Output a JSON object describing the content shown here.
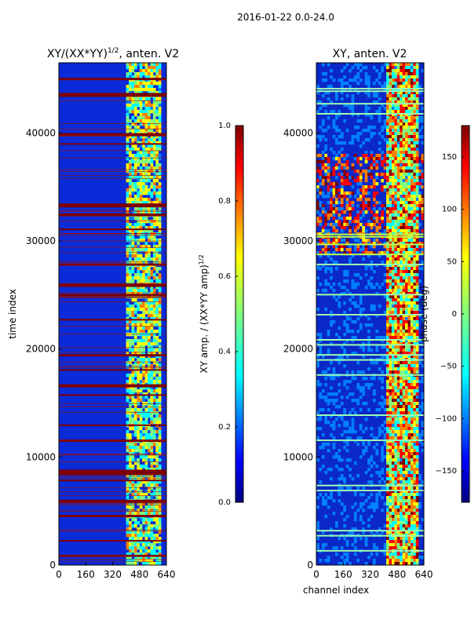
{
  "figure": {
    "suptitle": "2016-01-22 0.0-24.0"
  },
  "colors": {
    "jet": [
      "#00007f",
      "#0000ff",
      "#007fff",
      "#00ffff",
      "#7fff7f",
      "#ffff00",
      "#ff7f00",
      "#ff0000",
      "#7f0000"
    ],
    "axis": "#000000"
  },
  "chart_data": [
    {
      "id": "amp",
      "type": "heatmap",
      "title": "XY/(XX*YY)",
      "title_sup": "1/2",
      "title_suffix": ", anten. V2",
      "xlabel": "",
      "ylabel": "time index",
      "xlim": [
        0,
        640
      ],
      "ylim": [
        0,
        46500
      ],
      "xticks": [
        0,
        160,
        320,
        480,
        640
      ],
      "yticks": [
        0,
        10000,
        20000,
        30000,
        40000
      ],
      "xticklabels": [
        "0",
        "160",
        "320",
        "480",
        "640"
      ],
      "yticklabels": [
        "0",
        "10000",
        "20000",
        "30000",
        "40000"
      ],
      "colorbar": {
        "label": "XY amp. / (XX*YY amp)",
        "label_sup": "1/2",
        "range": [
          0.0,
          1.0
        ],
        "ticks": [
          0.0,
          0.2,
          0.4,
          0.6,
          0.8,
          1.0
        ],
        "ticklabels": [
          "0.0",
          "0.2",
          "0.4",
          "0.6",
          "0.8",
          "1.0"
        ]
      }
    },
    {
      "id": "phase",
      "type": "heatmap",
      "title": "XY, anten. V2",
      "xlabel": "channel index",
      "ylabel": "",
      "xlim": [
        0,
        640
      ],
      "ylim": [
        0,
        46500
      ],
      "xticks": [
        0,
        160,
        320,
        480,
        640
      ],
      "yticks": [
        0,
        10000,
        20000,
        30000,
        40000
      ],
      "xticklabels": [
        "0",
        "160",
        "320",
        "480",
        "640"
      ],
      "yticklabels": [
        "0",
        "10000",
        "20000",
        "30000",
        "40000"
      ],
      "colorbar": {
        "label": "phase (deg)",
        "range": [
          -180,
          180
        ],
        "ticks": [
          -150,
          -100,
          -50,
          0,
          50,
          100,
          150
        ],
        "ticklabels": [
          "−150",
          "−100",
          "−50",
          "0",
          "50",
          "100",
          "150"
        ]
      }
    }
  ]
}
